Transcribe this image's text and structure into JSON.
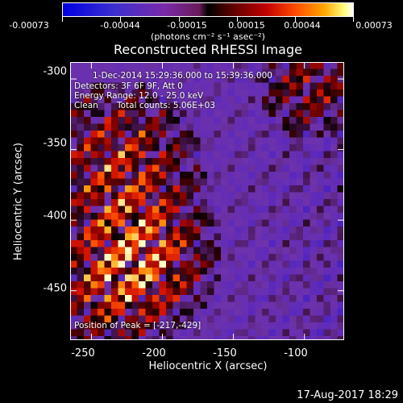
{
  "colorbar": {
    "ticks": [
      "-0.00073",
      "-0.00044",
      "-0.00015",
      "0.00015",
      "0.00044",
      "0.00073"
    ],
    "unit_label": "(photons cm⁻² s⁻¹ asec⁻²)",
    "colors": [
      "#0000e0",
      "#7a2aa8",
      "#000000",
      "#c00000",
      "#ffa500",
      "#ffffff"
    ]
  },
  "chart_data": {
    "type": "heatmap",
    "title": "Reconstructed RHESSI Image",
    "xlabel": "Heliocentric X (arcsec)",
    "ylabel": "Heliocentric Y (arcsec)",
    "xlim": [
      -265,
      -72
    ],
    "ylim": [
      -485,
      -288
    ],
    "x_ticks": [
      "-250",
      "-200",
      "-150",
      "-100"
    ],
    "y_ticks": [
      "-300",
      "-350",
      "-400",
      "-450"
    ],
    "x_tick_values": [
      -250,
      -200,
      -150,
      -100
    ],
    "y_tick_values": [
      -300,
      -350,
      -400,
      -450
    ],
    "peak": {
      "x": -217,
      "y": -429
    },
    "annotations": {
      "time": "1-Dec-2014 15:29:36.000 to 15:39:36.000",
      "detectors": "Detectors: 3F 6F 9F, Att 0",
      "energy": "Energy Range: 12.0 - 25.0 keV",
      "clean": "Clean",
      "counts": "Total counts: 5.06E+03",
      "peak_text": "Position of Peak = [-217,-429]"
    }
  },
  "footer": {
    "datestamp": "17-Aug-2017 18:29"
  }
}
